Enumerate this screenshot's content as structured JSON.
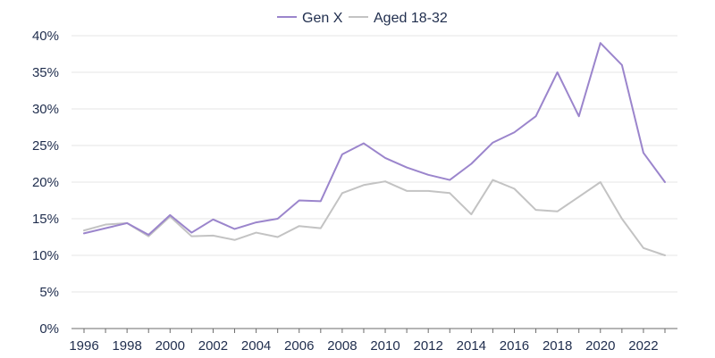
{
  "chart_data": {
    "type": "line",
    "title": "",
    "xlabel": "",
    "ylabel": "",
    "x": [
      1996,
      1997,
      1998,
      1999,
      2000,
      2001,
      2002,
      2003,
      2004,
      2005,
      2006,
      2007,
      2008,
      2009,
      2010,
      2011,
      2012,
      2013,
      2014,
      2015,
      2016,
      2017,
      2018,
      2019,
      2020,
      2021,
      2022,
      2023
    ],
    "x_tick_labels": [
      "1996",
      "1998",
      "2000",
      "2002",
      "2004",
      "2006",
      "2008",
      "2010",
      "2012",
      "2014",
      "2016",
      "2018",
      "2020",
      "2022"
    ],
    "y_tick_labels": [
      "0%",
      "5%",
      "10%",
      "15%",
      "20%",
      "25%",
      "30%",
      "35%",
      "40%"
    ],
    "ylim": [
      0,
      40
    ],
    "grid": "horizontal",
    "legend_position": "top-center",
    "series": [
      {
        "name": "Gen X",
        "color": "#9b85cc",
        "values": [
          13.0,
          13.7,
          14.4,
          12.8,
          15.5,
          13.1,
          14.9,
          13.6,
          14.5,
          15.0,
          17.5,
          17.4,
          23.8,
          25.3,
          23.3,
          22.0,
          21.0,
          20.3,
          22.5,
          25.4,
          26.8,
          29.0,
          35.0,
          29.0,
          39.0,
          36.0,
          24.0,
          20.0
        ]
      },
      {
        "name": "Aged 18-32",
        "color": "#c3c3c3",
        "values": [
          13.4,
          14.2,
          14.4,
          12.6,
          15.3,
          12.6,
          12.7,
          12.1,
          13.1,
          12.5,
          14.0,
          13.7,
          18.5,
          19.6,
          20.1,
          18.8,
          18.8,
          18.5,
          15.6,
          20.3,
          19.1,
          16.2,
          16.0,
          18.0,
          20.0,
          15.0,
          11.0,
          10.0
        ]
      }
    ]
  }
}
